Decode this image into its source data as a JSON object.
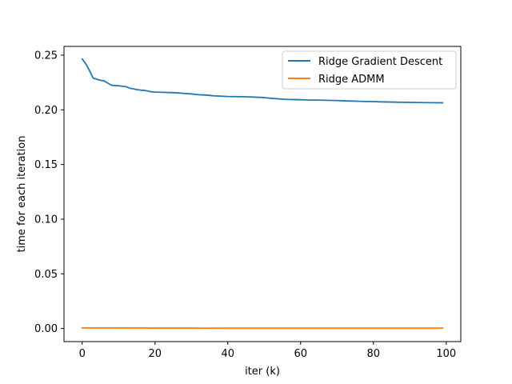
{
  "chart_data": {
    "type": "line",
    "title": "",
    "xlabel": "iter (k)",
    "ylabel": "time for each iteration",
    "xlim": [
      -5,
      104
    ],
    "ylim": [
      -0.012,
      0.258
    ],
    "xticks": [
      0,
      20,
      40,
      60,
      80,
      100
    ],
    "yticks": [
      0.0,
      0.05,
      0.1,
      0.15,
      0.2,
      0.25
    ],
    "ytick_labels": [
      "0.00",
      "0.05",
      "0.10",
      "0.15",
      "0.20",
      "0.25"
    ],
    "grid": false,
    "legend_position": "top-right",
    "series": [
      {
        "name": "Ridge Gradient Descent",
        "color": "#1f77b4",
        "x": [
          0,
          1,
          2,
          3,
          4,
          5,
          6,
          7,
          8,
          9,
          10,
          11,
          12,
          13,
          14,
          15,
          16,
          17,
          18,
          19,
          20,
          22,
          24,
          26,
          28,
          30,
          32,
          34,
          36,
          38,
          40,
          42,
          44,
          46,
          48,
          50,
          52,
          54,
          56,
          58,
          60,
          62,
          64,
          66,
          68,
          70,
          72,
          74,
          76,
          78,
          80,
          82,
          84,
          86,
          88,
          90,
          92,
          94,
          96,
          99
        ],
        "y": [
          0.2465,
          0.242,
          0.236,
          0.229,
          0.228,
          0.227,
          0.2265,
          0.2245,
          0.2225,
          0.2222,
          0.222,
          0.2215,
          0.2212,
          0.2198,
          0.2192,
          0.2185,
          0.218,
          0.2178,
          0.2172,
          0.2165,
          0.2162,
          0.216,
          0.2158,
          0.2155,
          0.215,
          0.2145,
          0.2138,
          0.2135,
          0.2128,
          0.2125,
          0.2122,
          0.2121,
          0.212,
          0.2118,
          0.2115,
          0.2112,
          0.2105,
          0.21,
          0.2095,
          0.2094,
          0.2092,
          0.209,
          0.2089,
          0.2088,
          0.2086,
          0.2085,
          0.2082,
          0.208,
          0.2078,
          0.2076,
          0.2075,
          0.2073,
          0.2072,
          0.207,
          0.2069,
          0.2068,
          0.2067,
          0.2066,
          0.2065,
          0.2064
        ]
      },
      {
        "name": "Ridge ADMM",
        "color": "#ff7f0e",
        "x": [
          0,
          10,
          20,
          30,
          40,
          50,
          60,
          70,
          80,
          90,
          99
        ],
        "y": [
          0.0005,
          0.0005,
          0.0004,
          0.0004,
          0.0003,
          0.0003,
          0.0003,
          0.0003,
          0.0003,
          0.0003,
          0.0003
        ]
      }
    ]
  }
}
